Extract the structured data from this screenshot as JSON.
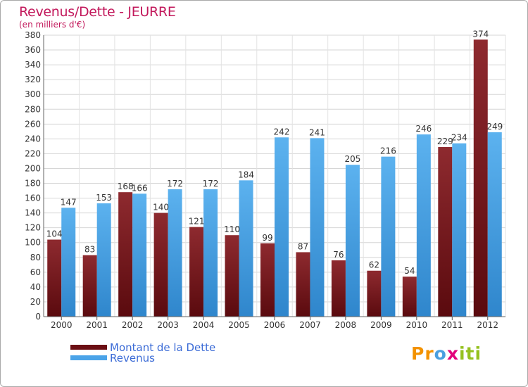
{
  "chart_data": {
    "type": "bar",
    "title": "Revenus/Dette - JEURRE",
    "subtitle": "(en milliers d'€)",
    "categories": [
      "2000",
      "2001",
      "2002",
      "2003",
      "2004",
      "2005",
      "2006",
      "2007",
      "2008",
      "2009",
      "2010",
      "2011",
      "2012"
    ],
    "series": [
      {
        "name": "Montant de la Dette",
        "color": "#6b0f14",
        "values": [
          104,
          83,
          168,
          140,
          121,
          110,
          99,
          87,
          76,
          62,
          54,
          229,
          374
        ]
      },
      {
        "name": "Revenus",
        "color": "#4aa3e8",
        "values": [
          147,
          153,
          166,
          172,
          172,
          184,
          242,
          241,
          205,
          216,
          246,
          234,
          249
        ]
      }
    ],
    "ylim": [
      0,
      380
    ],
    "yticks": [
      0,
      20,
      40,
      60,
      80,
      100,
      120,
      140,
      160,
      180,
      200,
      220,
      240,
      260,
      280,
      300,
      320,
      340,
      360,
      380
    ],
    "grid": true,
    "legend": "bottom-left"
  },
  "brand": {
    "logo_parts": [
      "Pr",
      "o",
      "x",
      "iti"
    ]
  }
}
